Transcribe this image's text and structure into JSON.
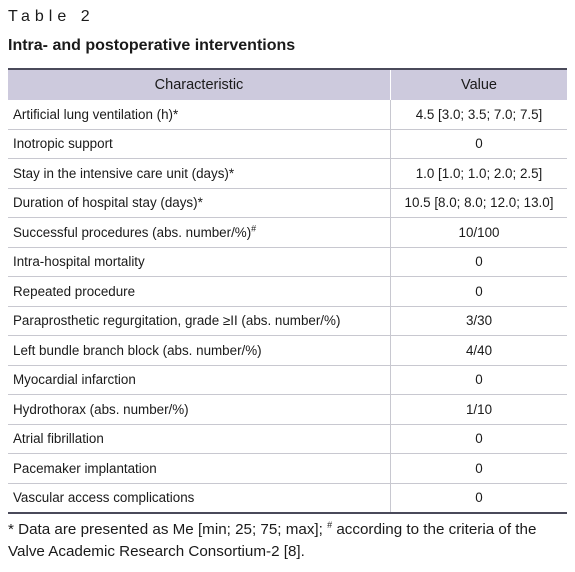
{
  "table_label": "Table 2",
  "title": "Intra- and postoperative interventions",
  "table": {
    "header": [
      "Characteristic",
      "Value"
    ],
    "rows": [
      {
        "characteristic": "Artificial lung ventilation (h)*",
        "value": "4.5 [3.0; 3.5; 7.0; 7.5]"
      },
      {
        "characteristic": "Inotropic support",
        "value": "0"
      },
      {
        "characteristic": "Stay in the intensive care unit (days)*",
        "value": "1.0 [1.0; 1.0; 2.0; 2.5]"
      },
      {
        "characteristic": "Duration of hospital stay (days)*",
        "value": "10.5 [8.0; 8.0; 12.0; 13.0]"
      },
      {
        "characteristic": "Successful procedures (abs. number/%)",
        "sup": "#",
        "value": "10/100"
      },
      {
        "characteristic": "Intra-hospital mortality",
        "value": "0"
      },
      {
        "characteristic": "Repeated procedure",
        "value": "0"
      },
      {
        "characteristic": "Paraprosthetic regurgitation, grade ≥II (abs. number/%)",
        "value": "3/30"
      },
      {
        "characteristic": "Left bundle branch block (abs. number/%)",
        "value": "4/40"
      },
      {
        "characteristic": "Myocardial infarction",
        "value": "0"
      },
      {
        "characteristic": "Hydrothorax (abs. number/%)",
        "value": "1/10"
      },
      {
        "characteristic": "Atrial fibrillation",
        "value": "0"
      },
      {
        "characteristic": "Pacemaker implantation",
        "value": "0"
      },
      {
        "characteristic": "Vascular access complications",
        "value": "0"
      }
    ]
  },
  "footnote": [
    "* Data are presented as Me [min; 25; 75; max]; ",
    "#",
    " according to the criteria of the Valve Academic Research Consortium-2 [8]."
  ]
}
